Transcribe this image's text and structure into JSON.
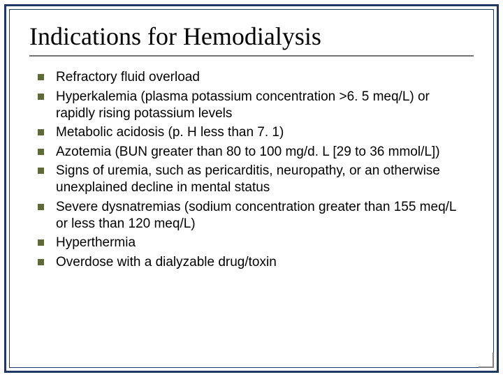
{
  "title": "Indications for Hemodialysis",
  "title_fontsize": 36,
  "title_font": "Times New Roman",
  "title_color": "#000000",
  "body_font": "Arial",
  "body_fontsize": 19,
  "body_color": "#000000",
  "bullet_marker_color": "#5d6b3b",
  "border_color": "#1f3864",
  "rule_color": "#757575",
  "background_color": "#ffffff",
  "items": [
    "Refractory fluid overload",
    "Hyperkalemia (plasma potassium concentration >6. 5 meq/L) or rapidly rising potassium levels",
    "Metabolic acidosis (p. H less than 7. 1)",
    "Azotemia (BUN greater than 80 to 100 mg/d. L [29 to 36 mmol/L])",
    "Signs of uremia, such as pericarditis, neuropathy, or an otherwise unexplained decline in mental status",
    "Severe dysnatremias (sodium concentration greater than 155 meq/L or less than 120 meq/L)",
    "Hyperthermia",
    "Overdose with a dialyzable drug/toxin"
  ]
}
